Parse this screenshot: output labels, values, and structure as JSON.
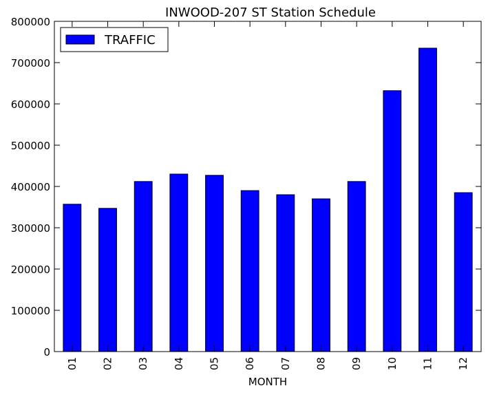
{
  "chart_data": {
    "type": "bar",
    "title": "INWOOD-207 ST Station Schedule",
    "xlabel": "MONTH",
    "ylabel": "",
    "categories": [
      "01",
      "02",
      "03",
      "04",
      "05",
      "06",
      "07",
      "08",
      "09",
      "10",
      "11",
      "12"
    ],
    "series": [
      {
        "name": "TRAFFIC",
        "values": [
          357000,
          347000,
          412000,
          430000,
          427000,
          390000,
          380000,
          370000,
          412000,
          632000,
          735000,
          385000
        ]
      }
    ],
    "ylim": [
      0,
      800000
    ],
    "yticks": [
      "0",
      "100000",
      "200000",
      "300000",
      "400000",
      "500000",
      "600000",
      "700000",
      "800000"
    ],
    "grid": false,
    "legend_position": "top-left",
    "colors": {
      "bar_fill": "#0000ff",
      "bar_edge": "#000000",
      "axes": "#000000",
      "background": "#ffffff"
    }
  }
}
